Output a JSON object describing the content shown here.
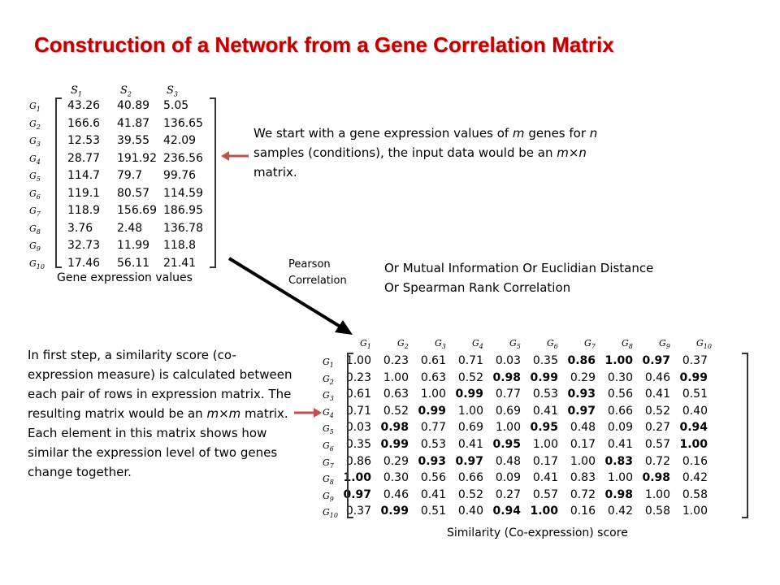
{
  "title": "Construction of a Network from a Gene Correlation Matrix",
  "gene_expression": {
    "columns": [
      "S1",
      "S2",
      "S3"
    ],
    "rows": [
      "G1",
      "G2",
      "G3",
      "G4",
      "G5",
      "G6",
      "G7",
      "G8",
      "G9",
      "G10"
    ],
    "values": [
      [
        "43.26",
        "40.89",
        "5.05"
      ],
      [
        "166.6",
        "41.87",
        "136.65"
      ],
      [
        "12.53",
        "39.55",
        "42.09"
      ],
      [
        "28.77",
        "191.92",
        "236.56"
      ],
      [
        "114.7",
        "79.7",
        "99.76"
      ],
      [
        "119.1",
        "80.57",
        "114.59"
      ],
      [
        "118.9",
        "156.69",
        "186.95"
      ],
      [
        "3.76",
        "2.48",
        "136.78"
      ],
      [
        "32.73",
        "11.99",
        "118.8"
      ],
      [
        "17.46",
        "56.11",
        "21.41"
      ]
    ],
    "caption": "Gene expression values"
  },
  "intro_text_parts": [
    "We start with a gene expression values of ",
    "m",
    " genes for ",
    "n",
    " samples (conditions), the input data would be an ",
    "m×n",
    " matrix."
  ],
  "method_label": "Pearson Correlation",
  "alternatives": [
    "Or Mutual Information Or Euclidian Distance",
    "Or Spearman Rank Correlation"
  ],
  "step_text_parts": [
    "In first step, a similarity score (co-expression measure) is calculated between each pair of rows in expression matrix. The resulting matrix would be an ",
    "m×m",
    " matrix. Each element in this matrix shows how similar the expression level of two genes change together."
  ],
  "similarity": {
    "columns": [
      "G1",
      "G2",
      "G3",
      "G4",
      "G5",
      "G6",
      "G7",
      "G8",
      "G9",
      "G10"
    ],
    "rows": [
      "G1",
      "G2",
      "G3",
      "G4",
      "G5",
      "G6",
      "G7",
      "G8",
      "G9",
      "G10"
    ],
    "values": [
      [
        "1.00",
        "0.23",
        "0.61",
        "0.71",
        "0.03",
        "0.35",
        "0.86",
        "1.00",
        "0.97",
        "0.37"
      ],
      [
        "0.23",
        "1.00",
        "0.63",
        "0.52",
        "0.98",
        "0.99",
        "0.29",
        "0.30",
        "0.46",
        "0.99"
      ],
      [
        "0.61",
        "0.63",
        "1.00",
        "0.99",
        "0.77",
        "0.53",
        "0.93",
        "0.56",
        "0.41",
        "0.51"
      ],
      [
        "0.71",
        "0.52",
        "0.99",
        "1.00",
        "0.69",
        "0.41",
        "0.97",
        "0.66",
        "0.52",
        "0.40"
      ],
      [
        "0.03",
        "0.98",
        "0.77",
        "0.69",
        "1.00",
        "0.95",
        "0.48",
        "0.09",
        "0.27",
        "0.94"
      ],
      [
        "0.35",
        "0.99",
        "0.53",
        "0.41",
        "0.95",
        "1.00",
        "0.17",
        "0.41",
        "0.57",
        "1.00"
      ],
      [
        "0.86",
        "0.29",
        "0.93",
        "0.97",
        "0.48",
        "0.17",
        "1.00",
        "0.83",
        "0.72",
        "0.16"
      ],
      [
        "1.00",
        "0.30",
        "0.56",
        "0.66",
        "0.09",
        "0.41",
        "0.83",
        "1.00",
        "0.98",
        "0.42"
      ],
      [
        "0.97",
        "0.46",
        "0.41",
        "0.52",
        "0.27",
        "0.57",
        "0.72",
        "0.98",
        "1.00",
        "0.58"
      ],
      [
        "0.37",
        "0.99",
        "0.51",
        "0.40",
        "0.94",
        "1.00",
        "0.16",
        "0.42",
        "0.58",
        "1.00"
      ]
    ],
    "bold": [
      [
        0,
        6
      ],
      [
        0,
        7
      ],
      [
        0,
        8
      ],
      [
        1,
        4
      ],
      [
        1,
        5
      ],
      [
        1,
        9
      ],
      [
        2,
        3
      ],
      [
        2,
        6
      ],
      [
        3,
        2
      ],
      [
        3,
        6
      ],
      [
        4,
        1
      ],
      [
        4,
        5
      ],
      [
        4,
        9
      ],
      [
        5,
        1
      ],
      [
        5,
        4
      ],
      [
        5,
        9
      ],
      [
        6,
        2
      ],
      [
        6,
        3
      ],
      [
        6,
        7
      ],
      [
        7,
        0
      ],
      [
        7,
        8
      ],
      [
        8,
        0
      ],
      [
        8,
        7
      ],
      [
        9,
        1
      ],
      [
        9,
        4
      ],
      [
        9,
        5
      ]
    ],
    "caption": "Similarity (Co-expression) score"
  },
  "colors": {
    "title": "#c00000",
    "pointer_arrow": "#c0504d",
    "flow_arrow": "#000000"
  }
}
